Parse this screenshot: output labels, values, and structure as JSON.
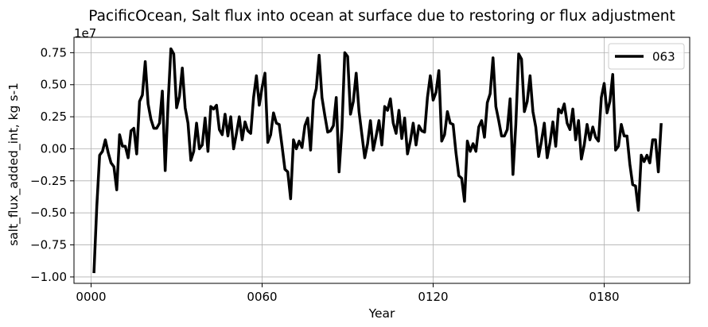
{
  "chart_data": {
    "type": "line",
    "title": "PacificOcean, Salt flux into ocean at surface due to restoring or flux adjustment",
    "xlabel": "Year",
    "ylabel": "salt_flux_added_int, kg s-1",
    "y_multiplier_label": "1e7",
    "y_scale_factor": 10000000,
    "xlim": [
      -6,
      210
    ],
    "ylim": [
      -1.05,
      0.87
    ],
    "x_ticks": [
      0,
      60,
      120,
      180
    ],
    "x_tick_labels": [
      "0000",
      "0060",
      "0120",
      "0180"
    ],
    "y_ticks": [
      -1.0,
      -0.75,
      -0.5,
      -0.25,
      0.0,
      0.25,
      0.5,
      0.75
    ],
    "y_tick_labels": [
      "−1.00",
      "−0.75",
      "−0.50",
      "−0.25",
      "0.00",
      "0.25",
      "0.50",
      "0.75"
    ],
    "grid": true,
    "legend_position": "top-right",
    "series": [
      {
        "name": "063",
        "color": "#000000",
        "x": [
          1,
          2,
          3,
          4,
          5,
          6,
          7,
          8,
          9,
          10,
          11,
          12,
          13,
          14,
          15,
          16,
          17,
          18,
          19,
          20,
          21,
          22,
          23,
          24,
          25,
          26,
          27,
          28,
          29,
          30,
          31,
          32,
          33,
          34,
          35,
          36,
          37,
          38,
          39,
          40,
          41,
          42,
          43,
          44,
          45,
          46,
          47,
          48,
          49,
          50,
          51,
          52,
          53,
          54,
          55,
          56,
          57,
          58,
          59,
          60,
          61,
          62,
          63,
          64,
          65,
          66,
          67,
          68,
          69,
          70,
          71,
          72,
          73,
          74,
          75,
          76,
          77,
          78,
          79,
          80,
          81,
          82,
          83,
          84,
          85,
          86,
          87,
          88,
          89,
          90,
          91,
          92,
          93,
          94,
          95,
          96,
          97,
          98,
          99,
          100,
          101,
          102,
          103,
          104,
          105,
          106,
          107,
          108,
          109,
          110,
          111,
          112,
          113,
          114,
          115,
          116,
          117,
          118,
          119,
          120,
          121,
          122,
          123,
          124,
          125,
          126,
          127,
          128,
          129,
          130,
          131,
          132,
          133,
          134,
          135,
          136,
          137,
          138,
          139,
          140,
          141,
          142,
          143,
          144,
          145,
          146,
          147,
          148,
          149,
          150,
          151,
          152,
          153,
          154,
          155,
          156,
          157,
          158,
          159,
          160,
          161,
          162,
          163,
          164,
          165,
          166,
          167,
          168,
          169,
          170,
          171,
          172,
          173,
          174,
          175,
          176,
          177,
          178,
          179,
          180,
          181,
          182,
          183,
          184,
          185,
          186,
          187,
          188,
          189,
          190,
          191,
          192,
          193,
          194,
          195,
          196,
          197,
          198,
          199,
          200
        ],
        "values": [
          -0.97,
          -0.45,
          -0.05,
          -0.02,
          0.07,
          -0.03,
          -0.11,
          -0.14,
          -0.32,
          0.11,
          0.02,
          0.02,
          -0.07,
          0.14,
          0.16,
          -0.04,
          0.37,
          0.42,
          0.68,
          0.35,
          0.23,
          0.16,
          0.16,
          0.2,
          0.45,
          -0.17,
          0.35,
          0.78,
          0.74,
          0.32,
          0.41,
          0.63,
          0.32,
          0.2,
          -0.09,
          -0.02,
          0.2,
          0.0,
          0.03,
          0.24,
          -0.02,
          0.33,
          0.31,
          0.34,
          0.15,
          0.11,
          0.27,
          0.1,
          0.25,
          0.0,
          0.12,
          0.25,
          0.07,
          0.21,
          0.14,
          0.12,
          0.4,
          0.57,
          0.34,
          0.48,
          0.59,
          0.05,
          0.11,
          0.28,
          0.2,
          0.19,
          0.02,
          -0.16,
          -0.18,
          -0.39,
          0.07,
          0.0,
          0.06,
          0.01,
          0.18,
          0.24,
          -0.01,
          0.38,
          0.47,
          0.73,
          0.4,
          0.26,
          0.13,
          0.14,
          0.18,
          0.4,
          -0.18,
          0.16,
          0.75,
          0.72,
          0.27,
          0.37,
          0.59,
          0.29,
          0.11,
          -0.07,
          0.04,
          0.22,
          -0.01,
          0.1,
          0.22,
          0.03,
          0.33,
          0.3,
          0.39,
          0.2,
          0.12,
          0.3,
          0.08,
          0.24,
          -0.04,
          0.06,
          0.2,
          0.03,
          0.18,
          0.14,
          0.13,
          0.4,
          0.57,
          0.38,
          0.44,
          0.61,
          0.06,
          0.11,
          0.29,
          0.2,
          0.19,
          -0.03,
          -0.21,
          -0.23,
          -0.41,
          0.06,
          -0.02,
          0.04,
          -0.02,
          0.17,
          0.22,
          0.09,
          0.36,
          0.43,
          0.71,
          0.33,
          0.22,
          0.1,
          0.1,
          0.15,
          0.39,
          -0.2,
          0.19,
          0.74,
          0.7,
          0.29,
          0.37,
          0.57,
          0.29,
          0.17,
          -0.06,
          0.06,
          0.2,
          -0.07,
          0.05,
          0.21,
          0.02,
          0.31,
          0.28,
          0.35,
          0.2,
          0.15,
          0.31,
          0.07,
          0.22,
          -0.08,
          0.03,
          0.19,
          0.07,
          0.17,
          0.09,
          0.06,
          0.4,
          0.51,
          0.28,
          0.37,
          0.58,
          -0.01,
          0.02,
          0.19,
          0.1,
          0.1,
          -0.12,
          -0.28,
          -0.29,
          -0.48,
          -0.05,
          -0.1,
          -0.05,
          -0.11,
          0.07,
          0.07,
          -0.18,
          0.2
        ]
      }
    ]
  }
}
